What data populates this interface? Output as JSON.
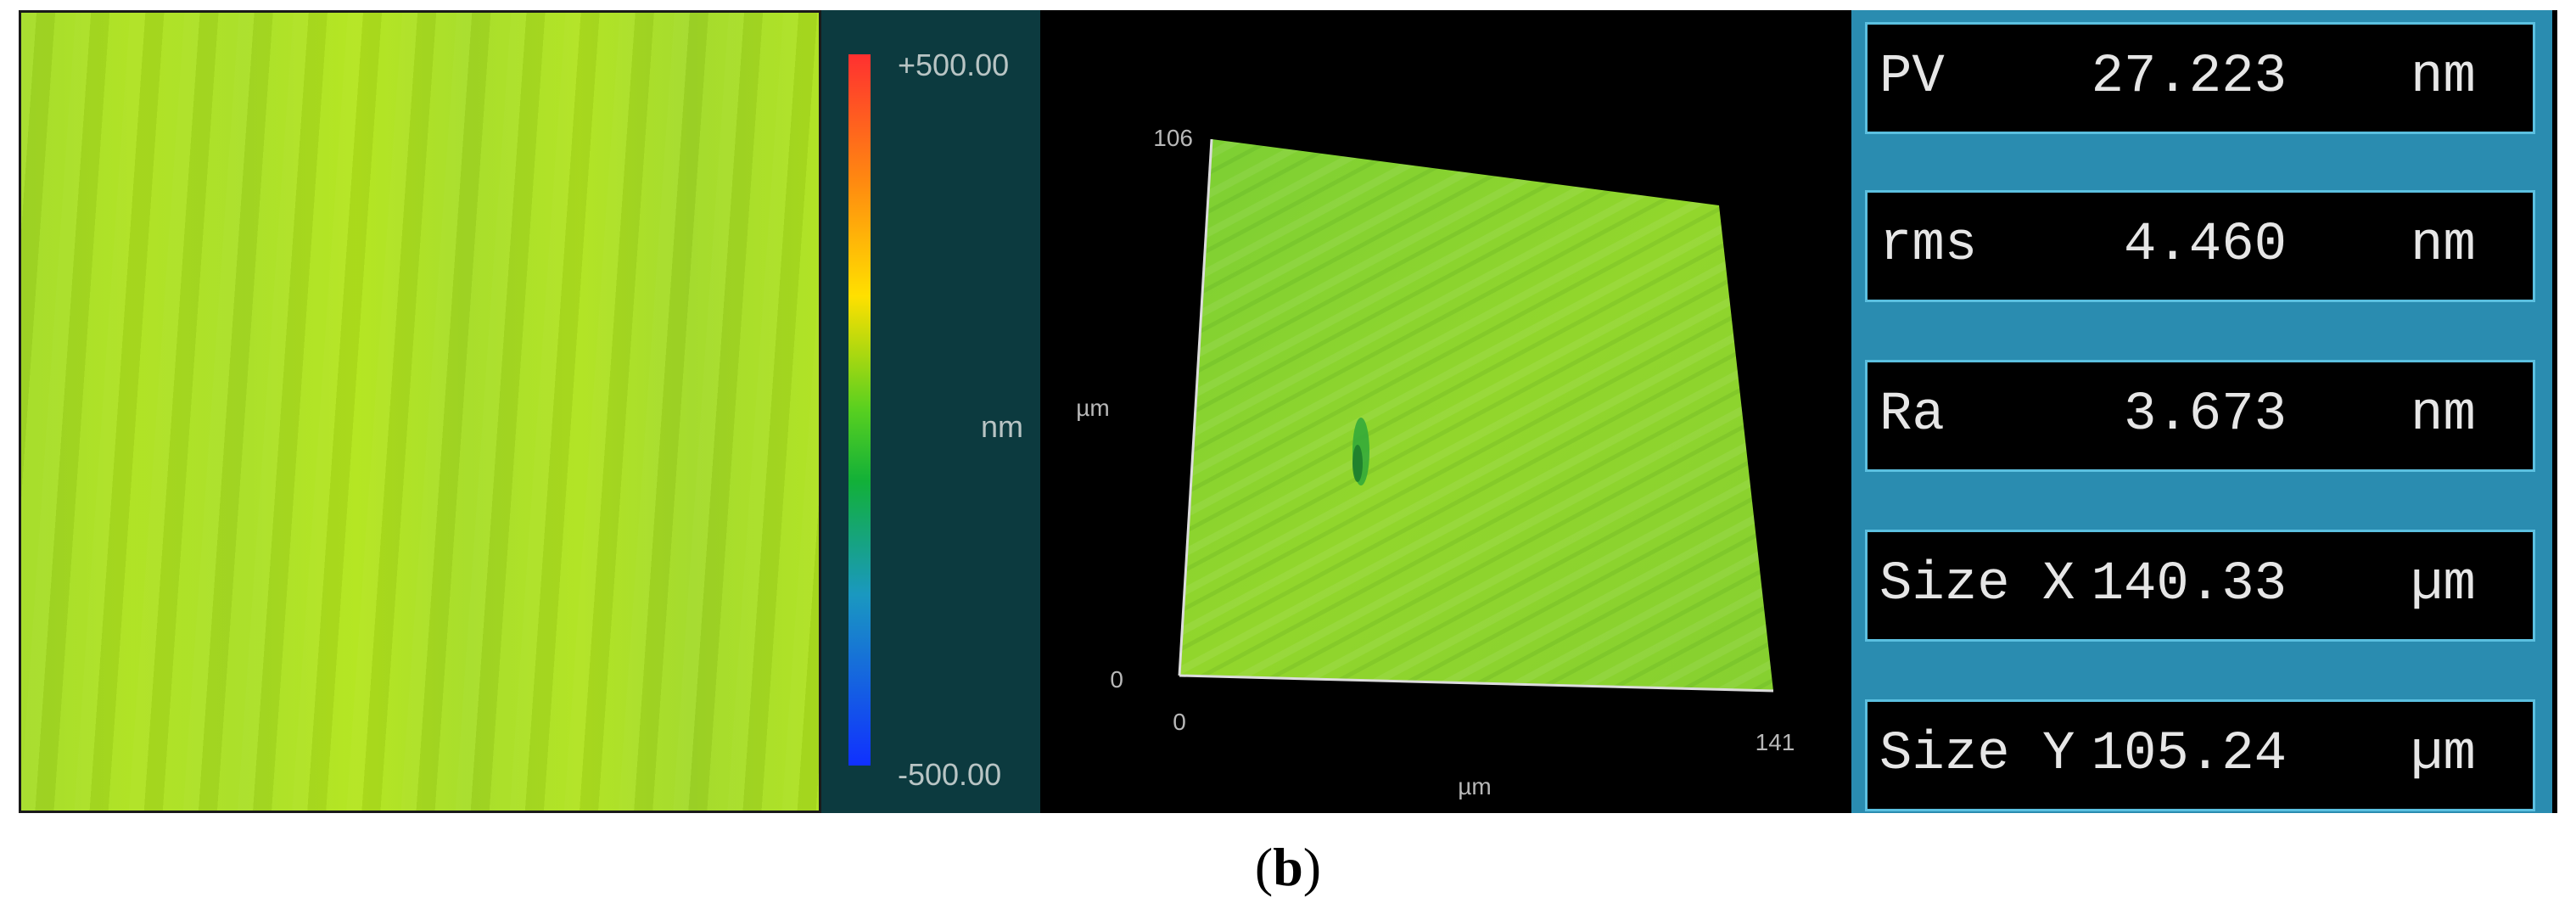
{
  "scale": {
    "max_label": "+500.00",
    "unit_label": "nm",
    "min_label": "-500.00"
  },
  "view3d": {
    "y_tick_top": "106",
    "y_tick_bottom": "0",
    "y_unit": "µm",
    "x_tick_left": "0",
    "x_tick_right": "141",
    "x_unit": "µm",
    "surface_color": "#8fd42e"
  },
  "stats": [
    {
      "name": "PV",
      "value": "27.223",
      "unit": "nm"
    },
    {
      "name": "rms",
      "value": "4.460",
      "unit": "nm"
    },
    {
      "name": "Ra",
      "value": "3.673",
      "unit": "nm"
    },
    {
      "name": "Size X",
      "value": "140.33",
      "unit": "µm"
    },
    {
      "name": "Size Y",
      "value": "105.24",
      "unit": "µm"
    }
  ],
  "caption": {
    "open": "(",
    "letter": "b",
    "close": ")"
  },
  "colors": {
    "map_fill": "#aee21f",
    "scale_panel": "#0c3a3f",
    "stats_frame": "#2a8cb0",
    "stats_border": "#5bc0e0"
  }
}
